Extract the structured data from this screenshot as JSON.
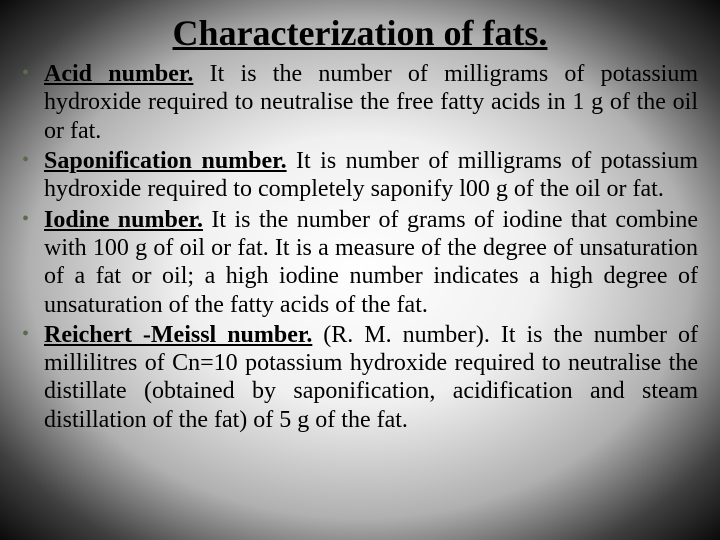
{
  "title": "Characterization of fats.",
  "title_fontsize": 36,
  "body_fontsize": 24,
  "colors": {
    "text": "#000000",
    "bullet": "#5a6b4a",
    "bg_center": "#ffffff",
    "bg_edge": "#0a0a0a"
  },
  "bullets": [
    {
      "term": "Acid number.",
      "definition": " It is the number of milligrams of potassium hydroxide required to neutralise the free fatty acids in 1 g of the oil or fat."
    },
    {
      "term": "Saponification number.",
      "definition": " It is number of milligrams of potassium hydroxide required to completely saponify l00 g of the oil or fat."
    },
    {
      "term": "Iodine number.",
      "definition": " It is the number of grams of iodine that combine with 100 g of oil or fat. It is a measure of the degree of unsaturation of a fat or oil; a high iodine number indicates a high degree of unsaturation of the fatty acids of the fat."
    },
    {
      "term": "Reichert -Meissl number.",
      "definition": " (R. M. number). It is the number of millilitres of Cn=10 potassium hydroxide required to neutralise the distillate (obtained by saponification, acidification and steam distillation of the fat) of 5 g of the fat."
    }
  ]
}
